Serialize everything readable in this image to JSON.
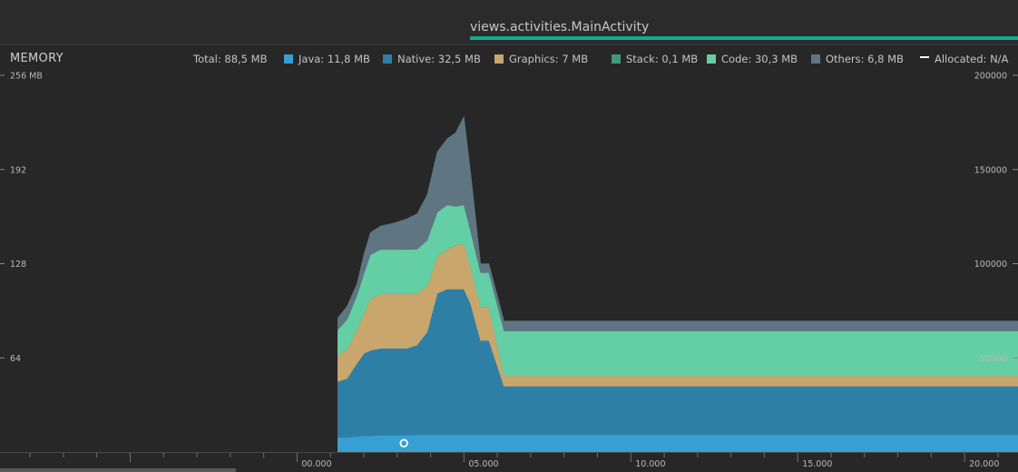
{
  "header": {
    "activity": "views.activities.MainActivity"
  },
  "memory": {
    "title": "MEMORY",
    "total": "Total: 88,5 MB",
    "legend": [
      {
        "label": "Java: 11,8 MB",
        "color": "#37a0d3",
        "icon": "swatch"
      },
      {
        "label": "Native: 32,5 MB",
        "color": "#2e7fa6",
        "icon": "swatch"
      },
      {
        "label": "Graphics: 7 MB",
        "color": "#c9a66b",
        "icon": "swatch"
      },
      {
        "label": "Stack: 0,1 MB",
        "color": "#3f9b74",
        "icon": "swatch"
      },
      {
        "label": "Code: 30,3 MB",
        "color": "#64cfa5",
        "icon": "swatch"
      },
      {
        "label": "Others: 6,8 MB",
        "color": "#5f7582",
        "icon": "swatch"
      },
      {
        "label": "Allocated: N/A",
        "color": "#ffffff",
        "icon": "dashed-line"
      }
    ]
  },
  "chart_data": {
    "type": "area",
    "stacked": true,
    "left_axis": {
      "ticks": [
        "256 MB",
        "192",
        "128",
        "64"
      ],
      "values": [
        256,
        192,
        128,
        64
      ],
      "ylim": [
        0,
        256
      ]
    },
    "right_axis": {
      "ticks": [
        "200000",
        "150000",
        "100000",
        "50000"
      ],
      "values": [
        200000,
        150000,
        100000,
        50000
      ],
      "ylim": [
        0,
        200000
      ]
    },
    "x_axis": {
      "ticks": [
        "00.000",
        "05.000",
        "10.000",
        "15.000",
        "20.000"
      ],
      "values": [
        0,
        5,
        10,
        15,
        20
      ],
      "xlim": [
        -8.9,
        21.6
      ]
    },
    "x": [
      1.22,
      1.5,
      1.8,
      2.0,
      2.2,
      2.5,
      2.9,
      3.3,
      3.6,
      3.9,
      4.2,
      4.5,
      4.75,
      5.0,
      5.2,
      5.5,
      5.75,
      6.2,
      21.6
    ],
    "series": [
      {
        "name": "Java",
        "color": "#37a0d3",
        "values": [
          10,
          10,
          10.5,
          11,
          11,
          11.5,
          11.5,
          11.5,
          11.8,
          11.8,
          11.8,
          11.8,
          11.8,
          11.8,
          11.8,
          11.8,
          11.8,
          11.8,
          11.8
        ]
      },
      {
        "name": "Native",
        "color": "#2e7fa6",
        "values": [
          38,
          40,
          50,
          56,
          58,
          59,
          59,
          59,
          61,
          70,
          96,
          99,
          99,
          99,
          89,
          64,
          64,
          33,
          33
        ]
      },
      {
        "name": "Graphics",
        "color": "#c9a66b",
        "values": [
          18,
          20,
          23,
          27,
          35,
          37,
          37,
          37,
          35,
          31,
          25,
          27,
          30,
          31,
          25,
          23,
          23,
          7,
          7
        ]
      },
      {
        "name": "Stack",
        "color": "#3f9b74",
        "values": [
          0.1,
          0.1,
          0.1,
          0.1,
          0.1,
          0.1,
          0.1,
          0.1,
          0.1,
          0.1,
          0.1,
          0.1,
          0.1,
          0.1,
          0.1,
          0.1,
          0.1,
          0.1,
          0.1
        ]
      },
      {
        "name": "Code",
        "color": "#64cfa5",
        "values": [
          17,
          20,
          23,
          27,
          30,
          30,
          30,
          30,
          30,
          31,
          30,
          30,
          26,
          26,
          24,
          23,
          23,
          30.3,
          30.3
        ]
      },
      {
        "name": "Others",
        "color": "#5f7582",
        "values": [
          8,
          9,
          8,
          13,
          15,
          16,
          18,
          21,
          24,
          31,
          41,
          45,
          50,
          60,
          40,
          6,
          6,
          6.8,
          6.8
        ]
      }
    ],
    "allocation_marker": {
      "x": 3.2,
      "value": 6
    }
  }
}
